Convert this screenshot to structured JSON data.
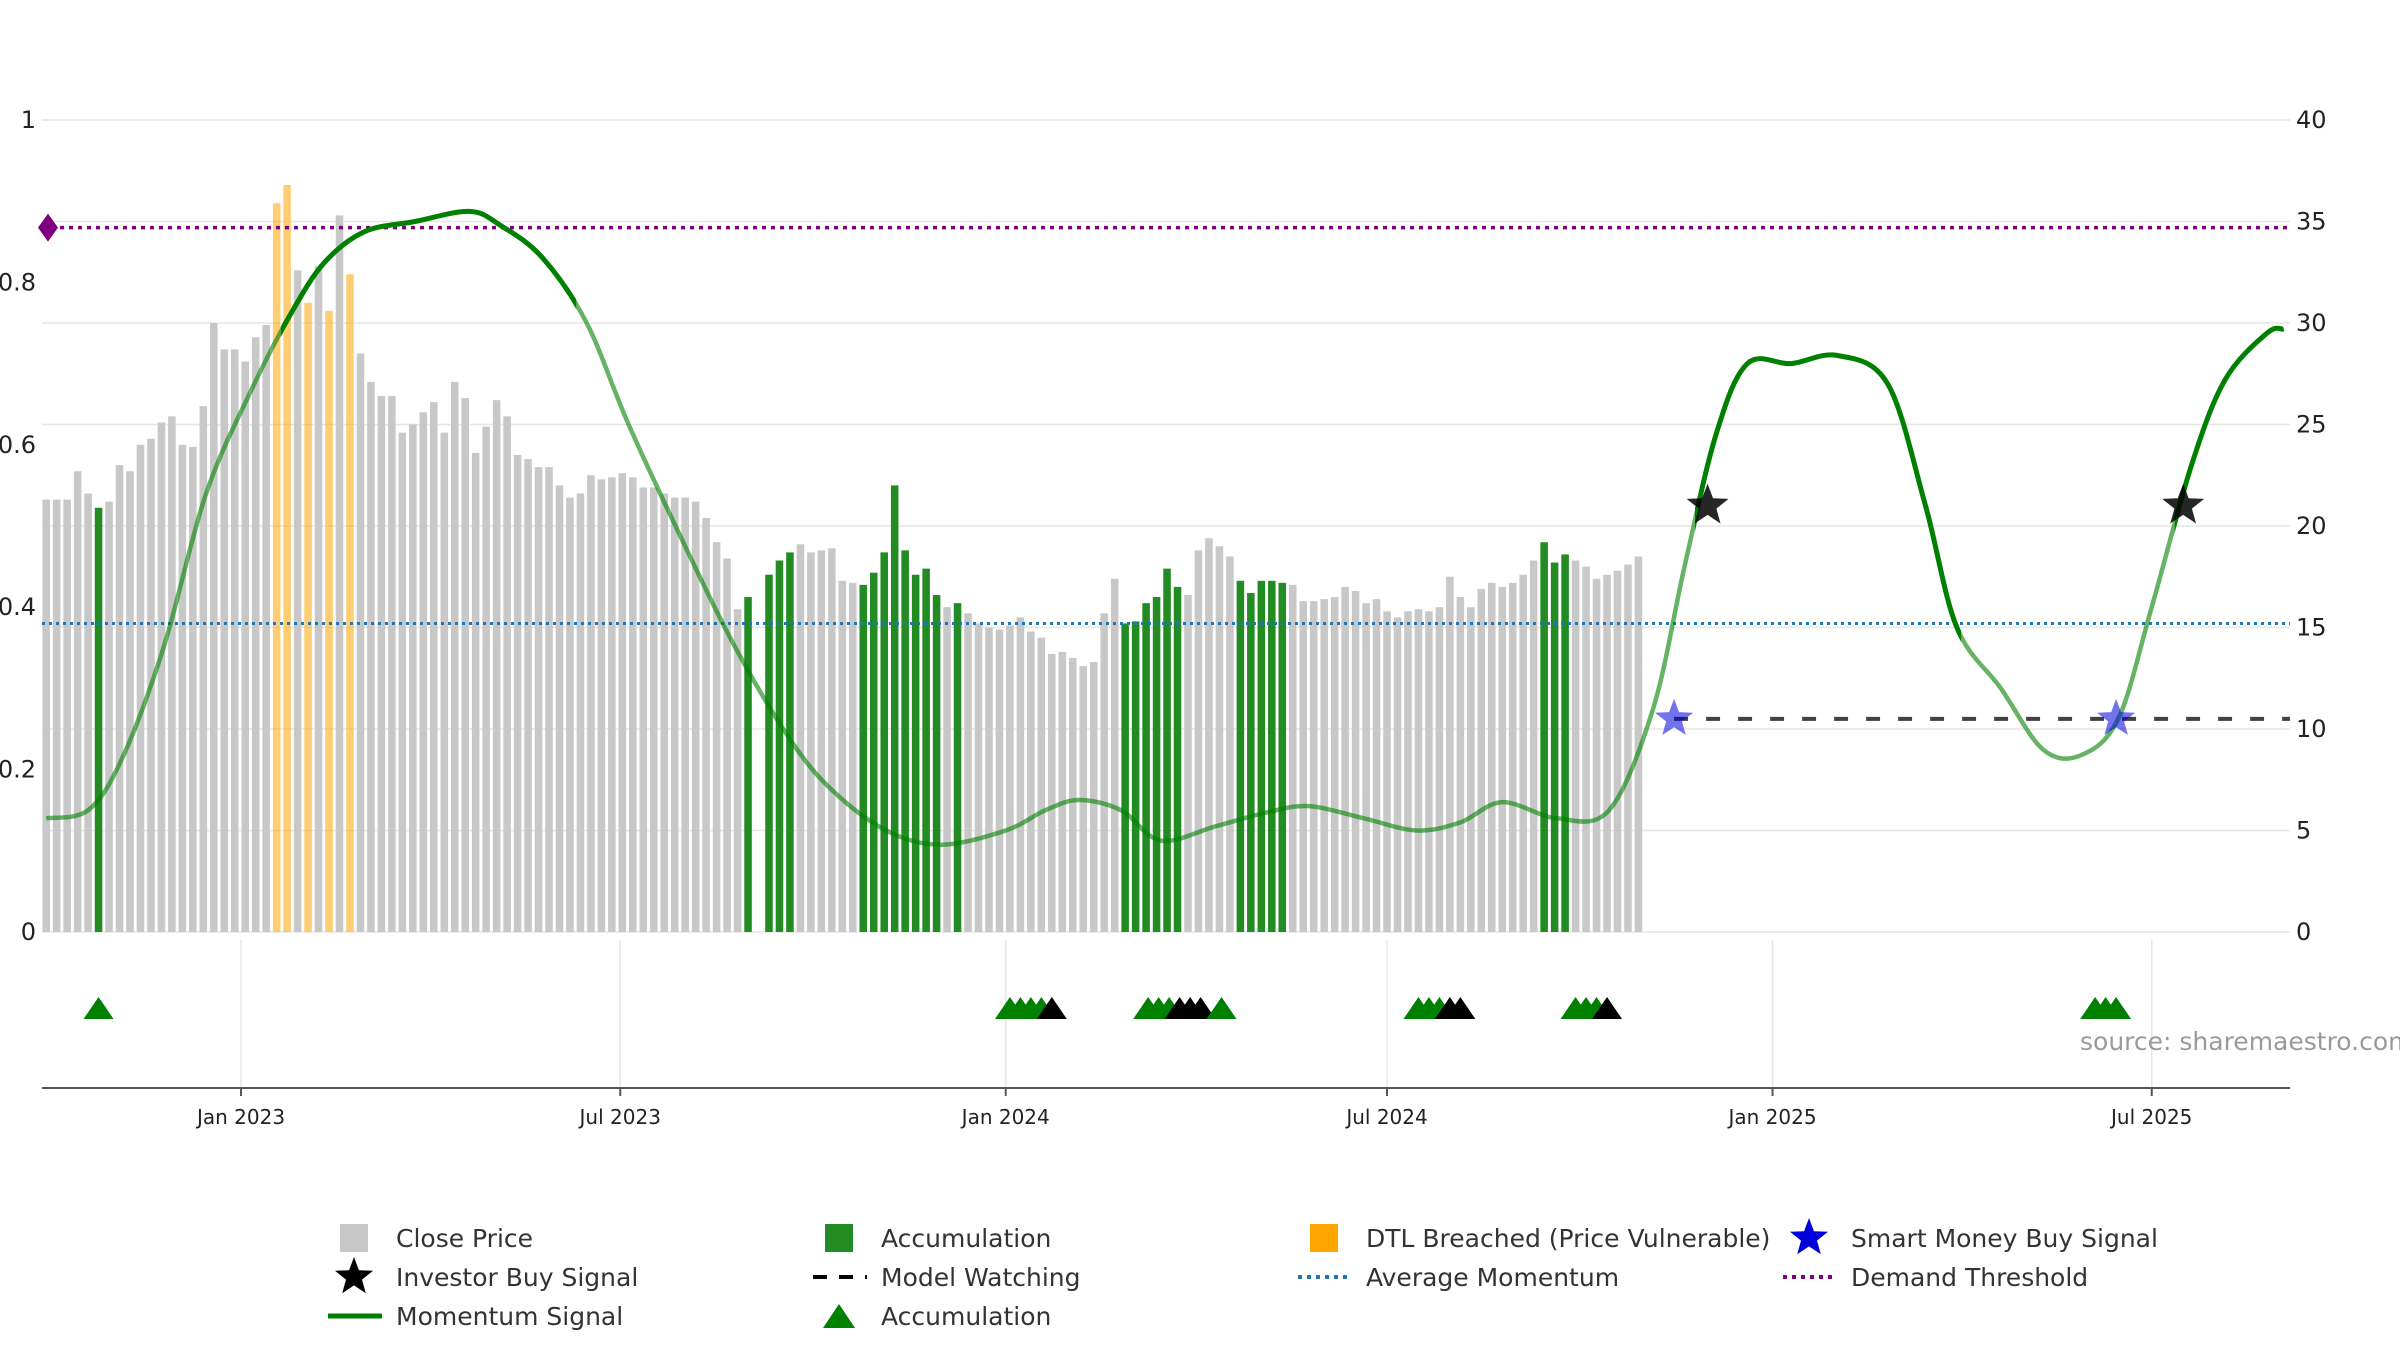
{
  "colors": {
    "close": "#c8c8c8",
    "accumulation": "#228b22",
    "dtl": "#ffa500",
    "momentum": "#008000",
    "average": "#1f77b4",
    "demand": "#800080",
    "smart_money": "#0000dd",
    "investor": "#000000",
    "watching": "#000000",
    "grid": "#e6e6e6",
    "axis": "#555555"
  },
  "source": "source: sharemaestro.com",
  "chart_data": {
    "type": "bar",
    "left_axis": {
      "min": 0,
      "max": 1,
      "ticks": [
        "0",
        "0.2",
        "0.4",
        "0.6",
        "0.8",
        "1"
      ],
      "tick_values": [
        0,
        0.2,
        0.4,
        0.6,
        0.8,
        1
      ]
    },
    "right_axis": {
      "min": 0,
      "max": 40,
      "ticks": [
        "0",
        "5",
        "10",
        "15",
        "20",
        "25",
        "30",
        "35",
        "40"
      ],
      "tick_values": [
        0,
        5,
        10,
        15,
        20,
        25,
        30,
        35,
        40
      ]
    },
    "x_range": [
      "2022-09-28",
      "2025-09-05"
    ],
    "date_ticks": [
      {
        "date": "2023-01-01",
        "label": "Jan 2023"
      },
      {
        "date": "2023-07-01",
        "label": "Jul 2023"
      },
      {
        "date": "2024-01-01",
        "label": "Jan 2024"
      },
      {
        "date": "2024-07-01",
        "label": "Jul 2024"
      },
      {
        "date": "2025-01-01",
        "label": "Jan 2025"
      },
      {
        "date": "2025-07-01",
        "label": "Jul 2025"
      }
    ],
    "bars": {
      "start_date": "2022-09-30",
      "interval_days": 5,
      "values": [
        21.3,
        21.3,
        21.3,
        22.7,
        21.6,
        20.9,
        21.2,
        23.0,
        22.7,
        24.0,
        24.3,
        25.1,
        25.4,
        24.0,
        23.9,
        25.9,
        30.0,
        28.7,
        28.7,
        28.1,
        29.3,
        29.9,
        35.9,
        36.8,
        32.6,
        31.0,
        32.8,
        30.6,
        35.3,
        32.4,
        28.5,
        27.1,
        26.4,
        26.4,
        24.6,
        25.0,
        25.6,
        26.1,
        24.6,
        27.1,
        26.3,
        23.6,
        24.9,
        26.2,
        25.4,
        23.5,
        23.3,
        22.9,
        22.9,
        22.0,
        21.4,
        21.6,
        22.5,
        22.3,
        22.4,
        22.6,
        22.4,
        21.9,
        21.9,
        21.6,
        21.4,
        21.4,
        21.2,
        20.4,
        19.2,
        18.4,
        15.9,
        16.5,
        0,
        17.6,
        18.3,
        18.7,
        19.1,
        18.7,
        18.8,
        18.9,
        17.3,
        17.2,
        17.1,
        17.7,
        18.7,
        22.0,
        18.8,
        17.6,
        17.9,
        16.6,
        16.0,
        16.2,
        15.7,
        15.2,
        15.0,
        14.9,
        15.1,
        15.5,
        14.8,
        14.5,
        13.7,
        13.8,
        13.5,
        13.1,
        13.3,
        15.7,
        17.4,
        15.2,
        15.3,
        16.2,
        16.5,
        17.9,
        17.0,
        16.6,
        18.8,
        19.4,
        19.0,
        18.5,
        17.3,
        16.7,
        17.3,
        17.3,
        17.2,
        17.1,
        16.3,
        16.3,
        16.4,
        16.5,
        17.0,
        16.8,
        16.2,
        16.4,
        15.8,
        15.5,
        15.8,
        15.9,
        15.8,
        16.0,
        17.5,
        16.5,
        16.0,
        16.9,
        17.2,
        17.0,
        17.2,
        17.6,
        18.3,
        19.2,
        18.2,
        18.6,
        18.3,
        18.0,
        17.4,
        17.6,
        17.8,
        18.1,
        18.5
      ],
      "categories": {
        "accumulation": [
          5,
          67,
          68,
          69,
          70,
          71,
          78,
          79,
          80,
          81,
          82,
          83,
          84,
          85,
          87,
          103,
          104,
          105,
          106,
          107,
          108,
          114,
          115,
          116,
          117,
          118,
          143,
          144,
          145
        ],
        "dtl": [
          22,
          23,
          25,
          27,
          29
        ]
      }
    },
    "momentum": {
      "points": [
        [
          "2022-09-30",
          5.6
        ],
        [
          "2022-10-20",
          6.0
        ],
        [
          "2022-11-05",
          8.5
        ],
        [
          "2022-11-25",
          14.0
        ],
        [
          "2022-12-15",
          21.5
        ],
        [
          "2023-01-05",
          26.5
        ],
        [
          "2023-01-25",
          30.5
        ],
        [
          "2023-02-10",
          33.0
        ],
        [
          "2023-03-01",
          34.5
        ],
        [
          "2023-03-25",
          35.0
        ],
        [
          "2023-04-20",
          35.5
        ],
        [
          "2023-05-05",
          34.8
        ],
        [
          "2023-05-25",
          33.2
        ],
        [
          "2023-06-15",
          30.0
        ],
        [
          "2023-07-05",
          25.0
        ],
        [
          "2023-08-01",
          19.0
        ],
        [
          "2023-08-25",
          14.0
        ],
        [
          "2023-09-20",
          9.5
        ],
        [
          "2023-10-10",
          7.0
        ],
        [
          "2023-11-05",
          5.0
        ],
        [
          "2023-12-01",
          4.3
        ],
        [
          "2024-01-01",
          5.0
        ],
        [
          "2024-01-20",
          6.0
        ],
        [
          "2024-02-05",
          6.5
        ],
        [
          "2024-02-25",
          6.0
        ],
        [
          "2024-03-15",
          4.5
        ],
        [
          "2024-04-10",
          5.2
        ],
        [
          "2024-05-05",
          5.9
        ],
        [
          "2024-05-25",
          6.2
        ],
        [
          "2024-06-20",
          5.6
        ],
        [
          "2024-07-15",
          5.0
        ],
        [
          "2024-08-05",
          5.4
        ],
        [
          "2024-08-25",
          6.4
        ],
        [
          "2024-09-20",
          5.6
        ],
        [
          "2024-10-15",
          6.0
        ],
        [
          "2024-11-05",
          11.0
        ],
        [
          "2024-11-20",
          18.0
        ],
        [
          "2024-12-05",
          24.5
        ],
        [
          "2024-12-20",
          28.0
        ],
        [
          "2025-01-10",
          28.0
        ],
        [
          "2025-02-01",
          28.4
        ],
        [
          "2025-02-25",
          27.0
        ],
        [
          "2025-03-15",
          21.0
        ],
        [
          "2025-03-30",
          15.0
        ],
        [
          "2025-04-20",
          12.0
        ],
        [
          "2025-05-10",
          9.0
        ],
        [
          "2025-05-28",
          8.7
        ],
        [
          "2025-06-15",
          10.5
        ],
        [
          "2025-07-01",
          16.0
        ],
        [
          "2025-07-20",
          23.0
        ],
        [
          "2025-08-05",
          27.2
        ],
        [
          "2025-08-25",
          29.5
        ],
        [
          "2025-09-02",
          29.7
        ]
      ],
      "strong_segments": [
        [
          "2023-01-20",
          "2023-06-10"
        ],
        [
          "2024-11-25",
          "2025-04-01"
        ],
        [
          "2025-07-12",
          "2025-09-05"
        ]
      ]
    },
    "average_momentum": 15.2,
    "demand_threshold": 34.7,
    "model_watching": {
      "from": "2024-11-15",
      "to": "2025-09-05",
      "value": 10.5
    },
    "smart_money_signals": [
      [
        "2024-11-15",
        10.5
      ],
      [
        "2025-06-14",
        10.5
      ]
    ],
    "investor_signals": [
      [
        "2024-12-01",
        21.0
      ],
      [
        "2025-07-16",
        21.0
      ]
    ],
    "markers": [
      {
        "date": "2022-10-25",
        "kind": "accumulation"
      },
      {
        "date": "2024-01-03",
        "kind": "accumulation"
      },
      {
        "date": "2024-01-08",
        "kind": "accumulation"
      },
      {
        "date": "2024-01-13",
        "kind": "accumulation"
      },
      {
        "date": "2024-01-18",
        "kind": "accumulation"
      },
      {
        "date": "2024-01-23",
        "kind": "watching"
      },
      {
        "date": "2024-03-09",
        "kind": "accumulation"
      },
      {
        "date": "2024-03-14",
        "kind": "accumulation"
      },
      {
        "date": "2024-03-19",
        "kind": "accumulation"
      },
      {
        "date": "2024-03-24",
        "kind": "watching"
      },
      {
        "date": "2024-03-29",
        "kind": "watching"
      },
      {
        "date": "2024-04-03",
        "kind": "watching"
      },
      {
        "date": "2024-04-13",
        "kind": "accumulation"
      },
      {
        "date": "2024-07-16",
        "kind": "accumulation"
      },
      {
        "date": "2024-07-21",
        "kind": "accumulation"
      },
      {
        "date": "2024-07-26",
        "kind": "accumulation"
      },
      {
        "date": "2024-07-31",
        "kind": "watching"
      },
      {
        "date": "2024-08-05",
        "kind": "watching"
      },
      {
        "date": "2024-09-29",
        "kind": "accumulation"
      },
      {
        "date": "2024-10-04",
        "kind": "accumulation"
      },
      {
        "date": "2024-10-09",
        "kind": "accumulation"
      },
      {
        "date": "2024-10-14",
        "kind": "watching"
      },
      {
        "date": "2025-06-04",
        "kind": "accumulation"
      },
      {
        "date": "2025-06-09",
        "kind": "accumulation"
      },
      {
        "date": "2025-06-14",
        "kind": "accumulation"
      }
    ],
    "legend": [
      {
        "label": "Close Price",
        "symbol": "square",
        "color_key": "close"
      },
      {
        "label": "Accumulation",
        "symbol": "square",
        "color_key": "accumulation"
      },
      {
        "label": "DTL Breached (Price Vulnerable)",
        "symbol": "square",
        "color_key": "dtl"
      },
      {
        "label": "Smart Money Buy Signal",
        "symbol": "star",
        "color_key": "smart_money"
      },
      {
        "label": "Investor Buy Signal",
        "symbol": "star",
        "color_key": "investor"
      },
      {
        "label": "Model Watching",
        "symbol": "dash",
        "color_key": "watching"
      },
      {
        "label": "Average Momentum",
        "symbol": "dot",
        "color_key": "average"
      },
      {
        "label": "Demand Threshold",
        "symbol": "dot",
        "color_key": "demand"
      },
      {
        "label": "Momentum Signal",
        "symbol": "line",
        "color_key": "momentum"
      },
      {
        "label": "Accumulation",
        "symbol": "triangle",
        "color_key": "momentum"
      }
    ]
  }
}
